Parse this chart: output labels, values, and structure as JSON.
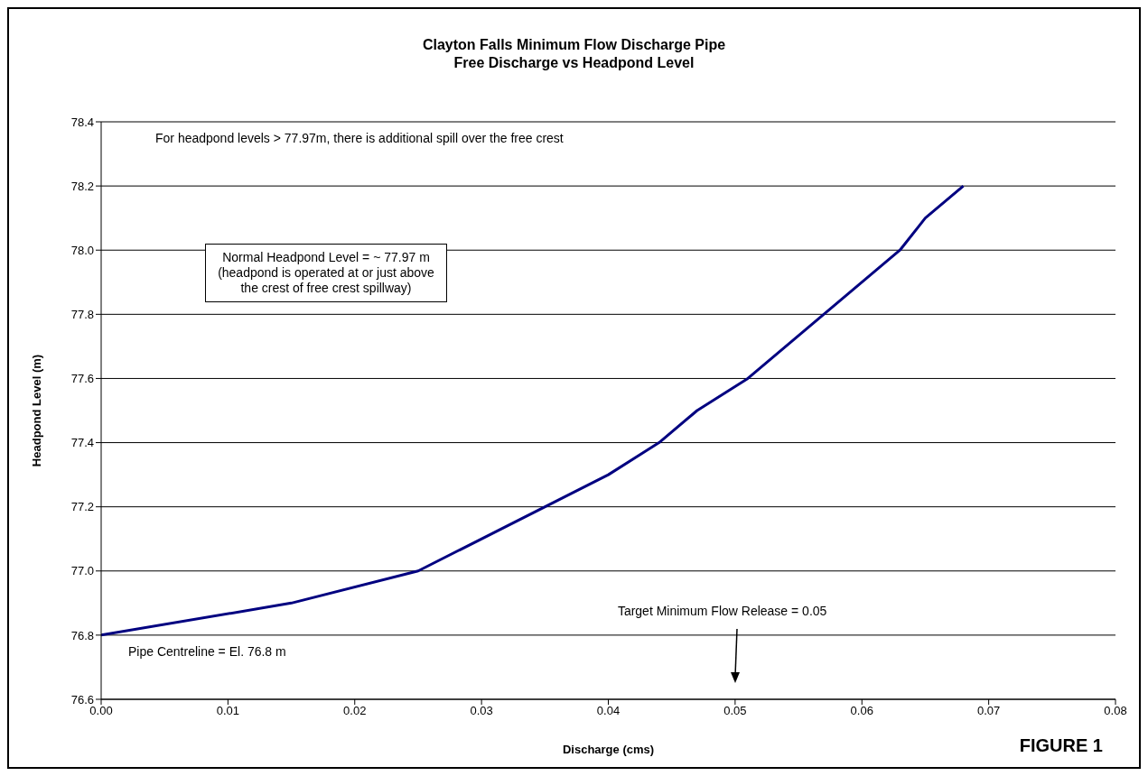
{
  "chart_data": {
    "type": "line",
    "title": "Clayton Falls Minimum Flow Discharge Pipe\nFree Discharge vs Headpond Level",
    "xlabel": "Discharge (cms)",
    "ylabel": "Headpond Level (m)",
    "x": [
      0,
      0.015,
      0.025,
      0.04,
      0.044,
      0.047,
      0.051,
      0.063,
      0.065,
      0.068
    ],
    "series": [
      {
        "color": "#000080",
        "values": [
          76.8,
          76.9,
          77.0,
          77.3,
          77.4,
          77.5,
          77.6,
          78.0,
          78.1,
          78.2
        ]
      }
    ],
    "xlim": [
      0,
      0.08
    ],
    "xticks": [
      {
        "value": 0,
        "label": "0.00"
      },
      {
        "value": 0.01,
        "label": "0.01"
      },
      {
        "value": 0.02,
        "label": "0.02"
      },
      {
        "value": 0.03,
        "label": "0.03"
      },
      {
        "value": 0.04,
        "label": "0.04"
      },
      {
        "value": 0.05,
        "label": "0.05"
      },
      {
        "value": 0.06,
        "label": "0.06"
      },
      {
        "value": 0.07,
        "label": "0.07"
      },
      {
        "value": 0.08,
        "label": "0.08"
      }
    ],
    "ylim": [
      76.6,
      78.4
    ],
    "yticks": [
      76.6,
      76.8,
      {
        "value": 77,
        "label": "77.0"
      },
      77.2,
      77.4,
      77.6,
      77.8,
      {
        "value": 78,
        "label": "78.0"
      },
      78.2,
      78.4
    ],
    "grid": "y",
    "marker": "none",
    "line_style": "solid",
    "annotations": [
      "For headpond levels > 77.97m, there is additional spill over the free crest",
      "Normal Headpond Level = ~ 77.97 m (headpond is operated at or just above the crest of free crest spillway)",
      "Target Minimum Flow Release = 0.05",
      {
        "text": "Pipe Centreline = El. 76.8 m",
        "x": 0,
        "y": 76.8
      },
      "FIGURE 1"
    ]
  }
}
